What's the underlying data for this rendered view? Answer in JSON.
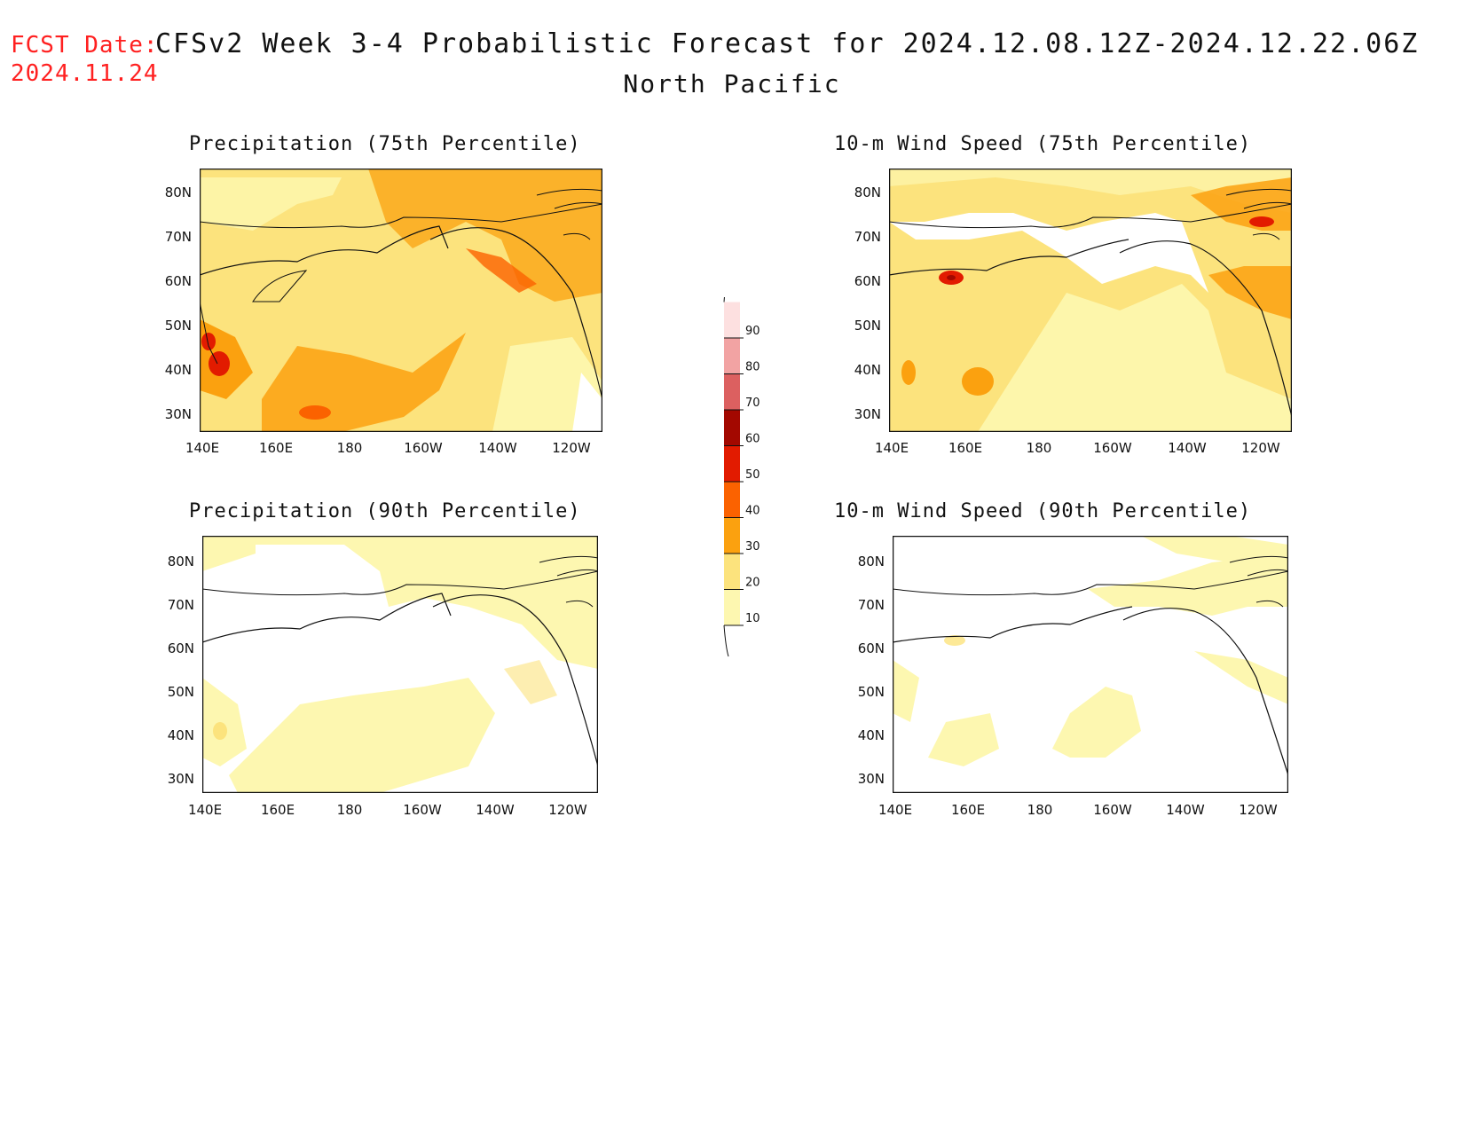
{
  "header": {
    "fcst_label": "FCST Date:",
    "fcst_date": "2024.11.24",
    "title": "CFSv2 Week 3-4 Probabilistic Forecast for 2024.12.08.12Z-2024.12.22.06Z",
    "subtitle": "North Pacific"
  },
  "panels": [
    {
      "id": "precip75",
      "title": "Precipitation (75th Percentile)"
    },
    {
      "id": "wind75",
      "title": "10-m Wind Speed (75th Percentile)"
    },
    {
      "id": "precip90",
      "title": "Precipitation (90th Percentile)"
    },
    {
      "id": "wind90",
      "title": "10-m Wind Speed (90th Percentile)"
    }
  ],
  "axes": {
    "lat_labels": [
      "80N",
      "70N",
      "60N",
      "50N",
      "40N",
      "30N"
    ],
    "lon_labels": [
      "140E",
      "160E",
      "180",
      "160W",
      "140W",
      "120W"
    ]
  },
  "colorbar": {
    "levels": [
      "10",
      "20",
      "30",
      "40",
      "50",
      "60",
      "70",
      "80",
      "90"
    ],
    "colors": [
      "#fdf7b0",
      "#fce37d",
      "#fba10f",
      "#fb6200",
      "#e21b00",
      "#a30800",
      "#dc6060",
      "#f2a3a3",
      "#fde0e0"
    ]
  }
}
